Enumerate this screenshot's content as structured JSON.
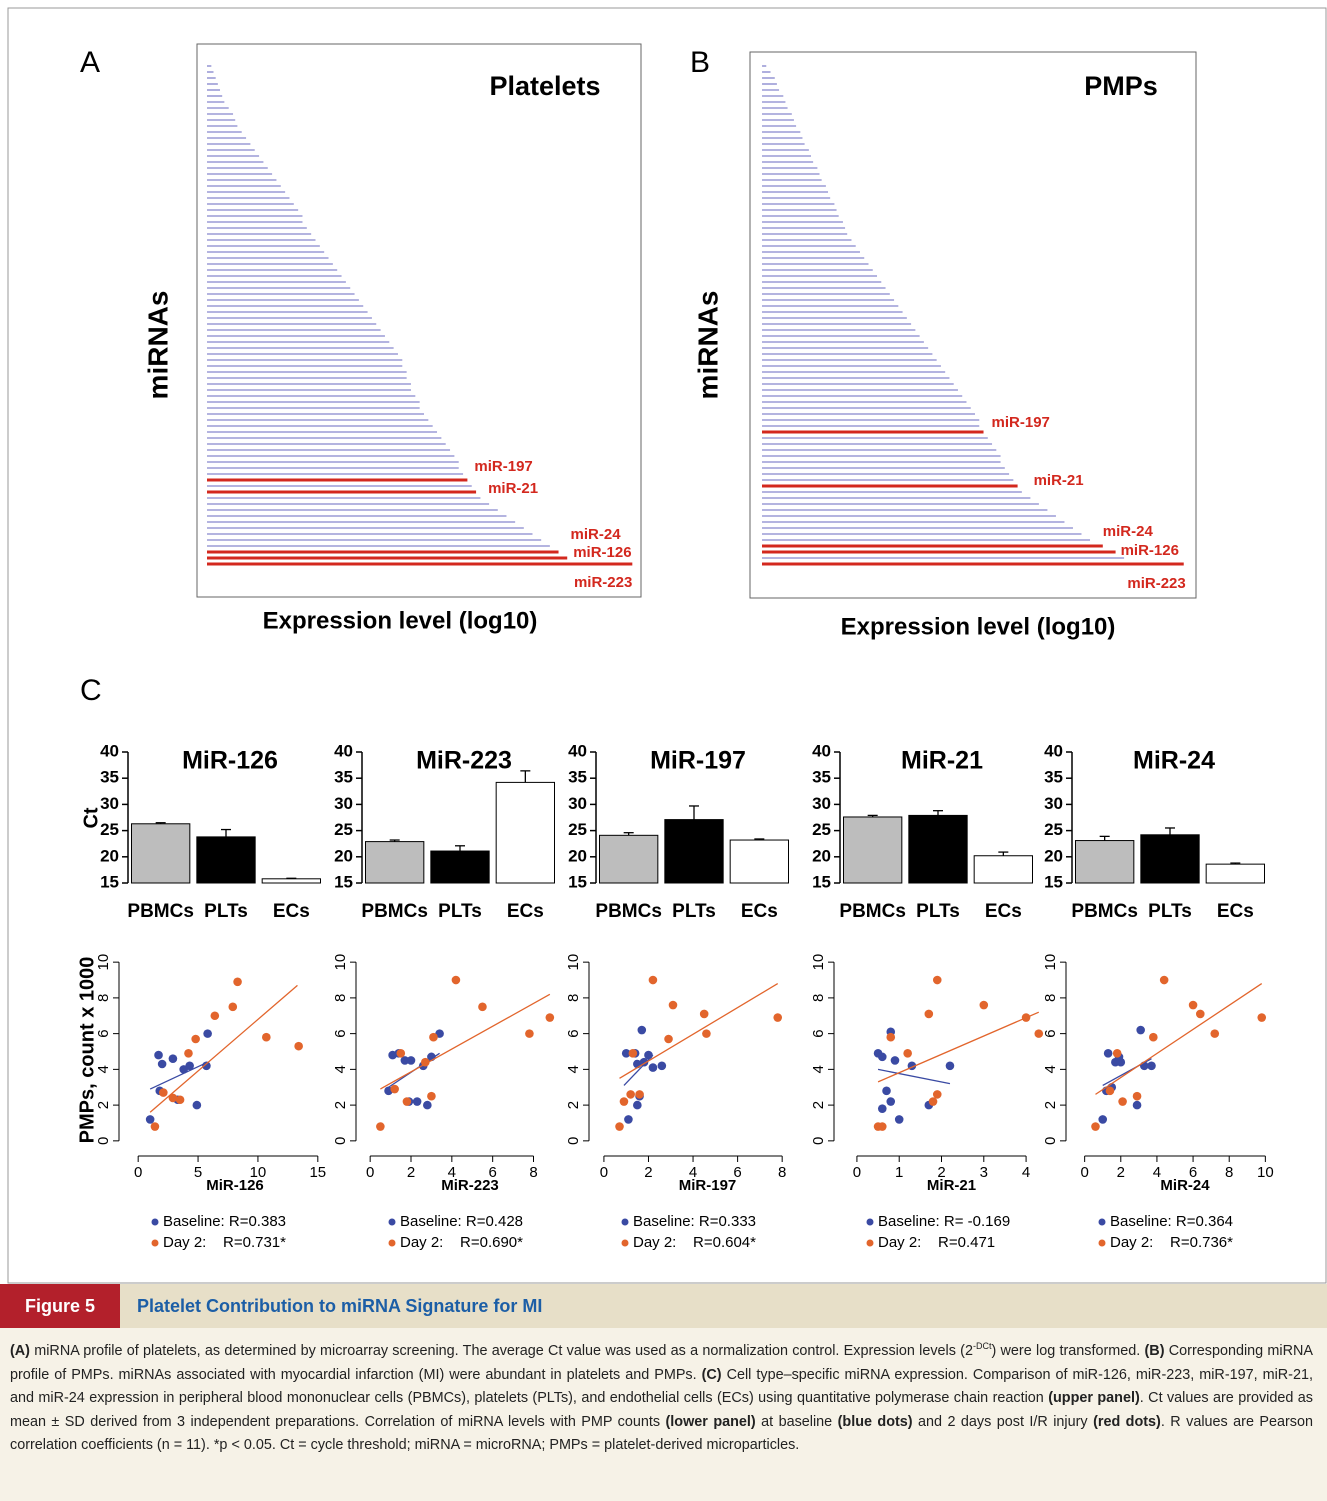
{
  "panels": [
    "A",
    "B",
    "C"
  ],
  "chart_data": [
    {
      "type": "barh",
      "title": "Platelets",
      "ylabel": "miRNAs",
      "xlabel": "Expression level (log10)",
      "color": "#9b9bd6",
      "highlight_color": "#d3281e",
      "xlim": [
        0,
        100
      ],
      "categories": [
        null,
        null,
        null,
        null,
        null,
        null,
        null,
        null,
        null,
        null,
        null,
        null,
        null,
        null,
        null,
        null,
        null,
        null,
        null,
        null,
        null,
        null,
        null,
        null,
        null,
        null,
        null,
        null,
        null,
        null,
        null,
        null,
        null,
        null,
        null,
        null,
        null,
        null,
        null,
        null,
        null,
        null,
        null,
        null,
        null,
        null,
        null,
        null,
        null,
        null,
        null,
        null,
        null,
        null,
        null,
        null,
        null,
        null,
        null,
        null,
        null,
        null,
        null,
        null,
        null,
        null,
        null,
        null,
        null,
        "miR-197",
        null,
        "miR-21",
        null,
        null,
        null,
        null,
        null,
        null,
        null,
        null,
        null,
        "miR-24",
        "miR-126",
        "miR-223"
      ],
      "values": [
        1,
        1.5,
        2,
        2.5,
        3,
        3.5,
        4,
        5,
        6,
        6.5,
        7,
        8,
        9,
        10,
        11,
        12,
        13,
        14,
        15,
        16,
        17,
        18,
        19,
        20,
        21,
        22,
        22,
        23,
        24,
        25,
        26,
        27,
        28,
        29,
        30,
        31,
        32,
        33,
        34,
        35,
        36,
        37,
        38,
        39,
        40,
        41,
        42,
        43,
        44,
        45,
        45,
        46,
        46,
        47,
        47,
        48,
        49,
        49,
        50,
        51,
        52,
        53,
        54,
        55,
        56,
        57,
        58,
        58,
        59,
        60,
        61,
        62,
        63,
        65,
        67,
        69,
        71,
        73,
        75,
        77,
        79,
        81,
        83,
        98
      ]
    },
    {
      "type": "barh",
      "title": "PMPs",
      "ylabel": "miRNAs",
      "xlabel": "Expression level (log10)",
      "color": "#9b9bd6",
      "highlight_color": "#d3281e",
      "xlim": [
        0,
        100
      ],
      "categories": [
        null,
        null,
        null,
        null,
        null,
        null,
        null,
        null,
        null,
        null,
        null,
        null,
        null,
        null,
        null,
        null,
        null,
        null,
        null,
        null,
        null,
        null,
        null,
        null,
        null,
        null,
        null,
        null,
        null,
        null,
        null,
        null,
        null,
        null,
        null,
        null,
        null,
        null,
        null,
        null,
        null,
        null,
        null,
        null,
        null,
        null,
        null,
        null,
        null,
        null,
        null,
        null,
        null,
        null,
        null,
        null,
        null,
        null,
        null,
        null,
        null,
        "miR-197",
        null,
        null,
        null,
        null,
        null,
        null,
        null,
        null,
        "miR-21",
        null,
        null,
        null,
        null,
        null,
        null,
        null,
        null,
        null,
        "miR-24",
        "miR-126",
        null,
        "miR-223"
      ],
      "values": [
        1,
        2,
        3,
        3.5,
        4,
        5,
        5.5,
        6,
        7,
        7.5,
        8,
        9,
        9.5,
        10,
        11,
        11.5,
        12,
        13,
        13.5,
        14,
        15,
        15.5,
        16,
        17,
        17.5,
        18,
        19,
        19.5,
        20,
        21,
        22,
        23,
        24,
        25,
        26,
        27,
        28,
        29,
        30,
        31,
        32,
        33,
        34,
        35,
        36,
        37,
        38,
        39,
        40,
        41,
        42,
        43,
        44,
        45,
        46,
        47,
        48,
        49,
        50,
        51,
        51,
        52,
        53,
        54,
        55,
        56,
        56,
        57,
        58,
        59,
        60,
        61,
        63,
        65,
        67,
        69,
        71,
        73,
        75,
        77,
        80,
        83,
        85,
        99
      ]
    },
    {
      "type": "bar",
      "title": "MiR-126",
      "ylabel": "Ct",
      "categories": [
        "PBMCs",
        "PLTs",
        "ECs"
      ],
      "values": [
        26.3,
        23.8,
        15.8
      ],
      "errors": [
        0.2,
        1.4,
        0.1
      ],
      "colors": [
        "#bdbdbd",
        "#000000",
        "#ffffff"
      ],
      "ylim": [
        15,
        40
      ],
      "yticks": [
        15,
        20,
        25,
        30,
        35,
        40
      ]
    },
    {
      "type": "bar",
      "title": "MiR-223",
      "categories": [
        "PBMCs",
        "PLTs",
        "ECs"
      ],
      "values": [
        22.9,
        21.1,
        34.2
      ],
      "errors": [
        0.3,
        1.0,
        2.2
      ],
      "colors": [
        "#bdbdbd",
        "#000000",
        "#ffffff"
      ],
      "ylim": [
        15,
        40
      ],
      "yticks": [
        15,
        20,
        25,
        30,
        35,
        40
      ]
    },
    {
      "type": "bar",
      "title": "MiR-197",
      "categories": [
        "PBMCs",
        "PLTs",
        "ECs"
      ],
      "values": [
        24.1,
        27.1,
        23.2
      ],
      "errors": [
        0.5,
        2.6,
        0.2
      ],
      "colors": [
        "#bdbdbd",
        "#000000",
        "#ffffff"
      ],
      "ylim": [
        15,
        40
      ],
      "yticks": [
        15,
        20,
        25,
        30,
        35,
        40
      ]
    },
    {
      "type": "bar",
      "title": "MiR-21",
      "categories": [
        "PBMCs",
        "PLTs",
        "ECs"
      ],
      "values": [
        27.6,
        27.9,
        20.2
      ],
      "errors": [
        0.3,
        0.9,
        0.7
      ],
      "colors": [
        "#bdbdbd",
        "#000000",
        "#ffffff"
      ],
      "ylim": [
        15,
        40
      ],
      "yticks": [
        15,
        20,
        25,
        30,
        35,
        40
      ]
    },
    {
      "type": "bar",
      "title": "MiR-24",
      "categories": [
        "PBMCs",
        "PLTs",
        "ECs"
      ],
      "values": [
        23.1,
        24.2,
        18.6
      ],
      "errors": [
        0.8,
        1.3,
        0.2
      ],
      "colors": [
        "#bdbdbd",
        "#000000",
        "#ffffff"
      ],
      "ylim": [
        15,
        40
      ],
      "yticks": [
        15,
        20,
        25,
        30,
        35,
        40
      ]
    },
    {
      "type": "scatter",
      "xlabel": "MiR-126",
      "ylabel": "PMPs, count x 1000",
      "xlim": [
        -1.1,
        15.6
      ],
      "ylim": [
        -0.4,
        10.4
      ],
      "xticks": [
        0,
        5,
        10,
        15
      ],
      "yticks": [
        0,
        2,
        4,
        6,
        8,
        10
      ],
      "series": [
        {
          "name": "Baseline: R=0.383",
          "color": "#3a4aa3",
          "x": [
            1.0,
            1.7,
            2.0,
            2.9,
            3.8,
            4.3,
            4.9,
            5.8,
            5.7,
            3.3,
            1.8
          ],
          "y": [
            1.2,
            4.8,
            4.3,
            4.6,
            4.0,
            4.2,
            2.0,
            6.0,
            4.2,
            2.3,
            2.8
          ],
          "fit": {
            "x": [
              1.0,
              5.8
            ],
            "y": [
              2.9,
              4.4
            ]
          }
        },
        {
          "name": "Day 2:    R=0.731*",
          "color": "#e2652c",
          "x": [
            1.4,
            2.9,
            3.5,
            4.2,
            4.8,
            6.4,
            7.9,
            8.3,
            10.7,
            13.4,
            2.1
          ],
          "y": [
            0.8,
            2.4,
            2.3,
            4.9,
            5.7,
            7.0,
            7.5,
            8.9,
            5.8,
            5.3,
            2.7
          ],
          "fit": {
            "x": [
              1.0,
              13.3
            ],
            "y": [
              1.6,
              8.7
            ]
          }
        }
      ]
    },
    {
      "type": "scatter",
      "xlabel": "MiR-223",
      "xlim": [
        -0.4,
        9.2
      ],
      "ylim": [
        -0.4,
        10.4
      ],
      "xticks": [
        0,
        2,
        4,
        6,
        8
      ],
      "yticks": [
        0,
        2,
        4,
        6,
        8,
        10
      ],
      "series": [
        {
          "name": "Baseline: R=0.428",
          "color": "#3a4aa3",
          "x": [
            0.9,
            1.1,
            1.4,
            1.7,
            2.0,
            1.9,
            2.3,
            2.6,
            2.8,
            3.4,
            3.0
          ],
          "y": [
            2.8,
            4.8,
            4.9,
            4.5,
            4.5,
            2.2,
            2.2,
            4.2,
            2.0,
            6.0,
            4.7
          ],
          "fit": {
            "x": [
              0.9,
              3.4
            ],
            "y": [
              3.0,
              4.9
            ]
          }
        },
        {
          "name": "Day 2:    R=0.690*",
          "color": "#e2652c",
          "x": [
            0.5,
            1.2,
            1.5,
            1.8,
            2.7,
            3.1,
            3.0,
            4.2,
            5.5,
            7.8,
            8.8
          ],
          "y": [
            0.8,
            2.9,
            4.9,
            2.2,
            4.4,
            5.8,
            2.5,
            9.0,
            7.5,
            6.0,
            6.9
          ],
          "fit": {
            "x": [
              0.5,
              8.8
            ],
            "y": [
              2.9,
              8.2
            ]
          }
        }
      ]
    },
    {
      "type": "scatter",
      "xlabel": "MiR-197",
      "xlim": [
        -0.4,
        8.8
      ],
      "ylim": [
        -0.4,
        10.4
      ],
      "xticks": [
        0,
        2,
        4,
        6,
        8
      ],
      "yticks": [
        0,
        2,
        4,
        6,
        8,
        10
      ],
      "series": [
        {
          "name": "Baseline: R=0.333",
          "color": "#3a4aa3",
          "x": [
            1.0,
            1.4,
            1.5,
            1.7,
            1.8,
            2.0,
            2.2,
            2.6,
            1.1,
            1.5,
            1.6
          ],
          "y": [
            4.9,
            4.9,
            4.3,
            6.2,
            4.4,
            4.8,
            4.1,
            4.2,
            1.2,
            2.0,
            2.5
          ],
          "fit": {
            "x": [
              0.9,
              2.2
            ],
            "y": [
              3.1,
              4.8
            ]
          }
        },
        {
          "name": "Day 2:    R=0.604*",
          "color": "#e2652c",
          "x": [
            0.7,
            0.9,
            1.2,
            1.6,
            2.2,
            2.9,
            3.1,
            4.5,
            4.6,
            7.8,
            1.3
          ],
          "y": [
            0.8,
            2.2,
            2.6,
            2.6,
            9.0,
            5.7,
            7.6,
            7.1,
            6.0,
            6.9,
            4.9
          ],
          "fit": {
            "x": [
              0.7,
              7.8
            ],
            "y": [
              3.5,
              8.8
            ]
          }
        }
      ]
    },
    {
      "type": "scatter",
      "xlabel": "MiR-21",
      "xlim": [
        -0.4,
        4.4
      ],
      "ylim": [
        -0.4,
        10.4
      ],
      "xticks": [
        0,
        1,
        2,
        3,
        4
      ],
      "yticks": [
        0,
        2,
        4,
        6,
        8,
        10
      ],
      "series": [
        {
          "name": "Baseline: R= -0.169",
          "color": "#3a4aa3",
          "x": [
            0.5,
            0.6,
            0.8,
            0.7,
            0.9,
            1.0,
            0.8,
            1.3,
            1.7,
            2.2,
            0.6
          ],
          "y": [
            4.9,
            4.7,
            6.1,
            2.8,
            4.5,
            1.2,
            2.2,
            4.2,
            2.0,
            4.2,
            1.8
          ],
          "fit": {
            "x": [
              0.5,
              2.2
            ],
            "y": [
              4.0,
              3.2
            ]
          }
        },
        {
          "name": "Day 2:    R=0.471",
          "color": "#e2652c",
          "x": [
            0.5,
            0.8,
            1.2,
            1.7,
            1.8,
            1.9,
            1.9,
            3.0,
            4.0,
            4.3,
            0.6
          ],
          "y": [
            0.8,
            5.8,
            4.9,
            7.1,
            2.2,
            2.6,
            9.0,
            7.6,
            6.9,
            6.0,
            0.8
          ],
          "fit": {
            "x": [
              0.5,
              4.3
            ],
            "y": [
              3.3,
              7.2
            ]
          }
        }
      ]
    },
    {
      "type": "scatter",
      "xlabel": "MiR-24",
      "xlim": [
        -0.7,
        10.7
      ],
      "ylim": [
        -0.4,
        10.4
      ],
      "xticks": [
        0,
        2,
        4,
        6,
        8,
        10
      ],
      "yticks": [
        0,
        2,
        4,
        6,
        8,
        10
      ],
      "series": [
        {
          "name": "Baseline: R=0.364",
          "color": "#3a4aa3",
          "x": [
            1.0,
            1.2,
            1.3,
            1.7,
            1.9,
            2.0,
            2.9,
            3.1,
            3.3,
            3.7,
            1.5
          ],
          "y": [
            1.2,
            2.8,
            4.9,
            4.4,
            4.7,
            4.4,
            2.0,
            6.2,
            4.2,
            4.2,
            3.0
          ],
          "fit": {
            "x": [
              1.0,
              3.7
            ],
            "y": [
              3.1,
              4.6
            ]
          }
        },
        {
          "name": "Day 2:    R=0.736*",
          "color": "#e2652c",
          "x": [
            0.6,
            1.4,
            1.8,
            2.1,
            2.9,
            3.8,
            4.4,
            6.0,
            6.4,
            7.2,
            9.8
          ],
          "y": [
            0.8,
            2.8,
            4.9,
            2.2,
            2.5,
            5.8,
            9.0,
            7.6,
            7.1,
            6.0,
            6.9
          ],
          "fit": {
            "x": [
              0.6,
              9.8
            ],
            "y": [
              2.6,
              8.8
            ]
          }
        }
      ]
    }
  ],
  "figure": {
    "label": "Figure 5",
    "title": "Platelet Contribution to miRNA Signature for MI",
    "caption": [
      {
        "text": "(A)",
        "bold": true
      },
      {
        "text": " miRNA profile of platelets, as determined by microarray screening. The average Ct value was used as a normalization control. Expression levels (2"
      },
      {
        "text": "-DCt",
        "sup": true
      },
      {
        "text": ") were log transformed. "
      },
      {
        "text": "(B)",
        "bold": true
      },
      {
        "text": " Corresponding miRNA profile of PMPs. miRNAs associated with myocardial infarction (MI) were abundant in platelets and PMPs. "
      },
      {
        "text": "(C)",
        "bold": true
      },
      {
        "text": " Cell type–specific miRNA expression. Comparison of miR-126, miR-223, miR-197, miR-21, and miR-24 expression in peripheral blood mononuclear cells (PBMCs), platelets (PLTs), and endothelial cells (ECs) using quantitative polymerase chain reaction "
      },
      {
        "text": "(upper panel)",
        "bold": true
      },
      {
        "text": ". Ct values are provided as mean ± SD derived from 3 independent preparations. Correlation of miRNA levels with PMP counts "
      },
      {
        "text": "(lower panel)",
        "bold": true
      },
      {
        "text": " at baseline "
      },
      {
        "text": "(blue dots)",
        "bold": true
      },
      {
        "text": " and 2 days post I/R injury "
      },
      {
        "text": "(red dots)",
        "bold": true
      },
      {
        "text": ". R values are Pearson correlation coefficients (n = 11). *p < 0.05. Ct = cycle threshold; miRNA = microRNA; PMPs = platelet-derived microparticles."
      }
    ]
  }
}
